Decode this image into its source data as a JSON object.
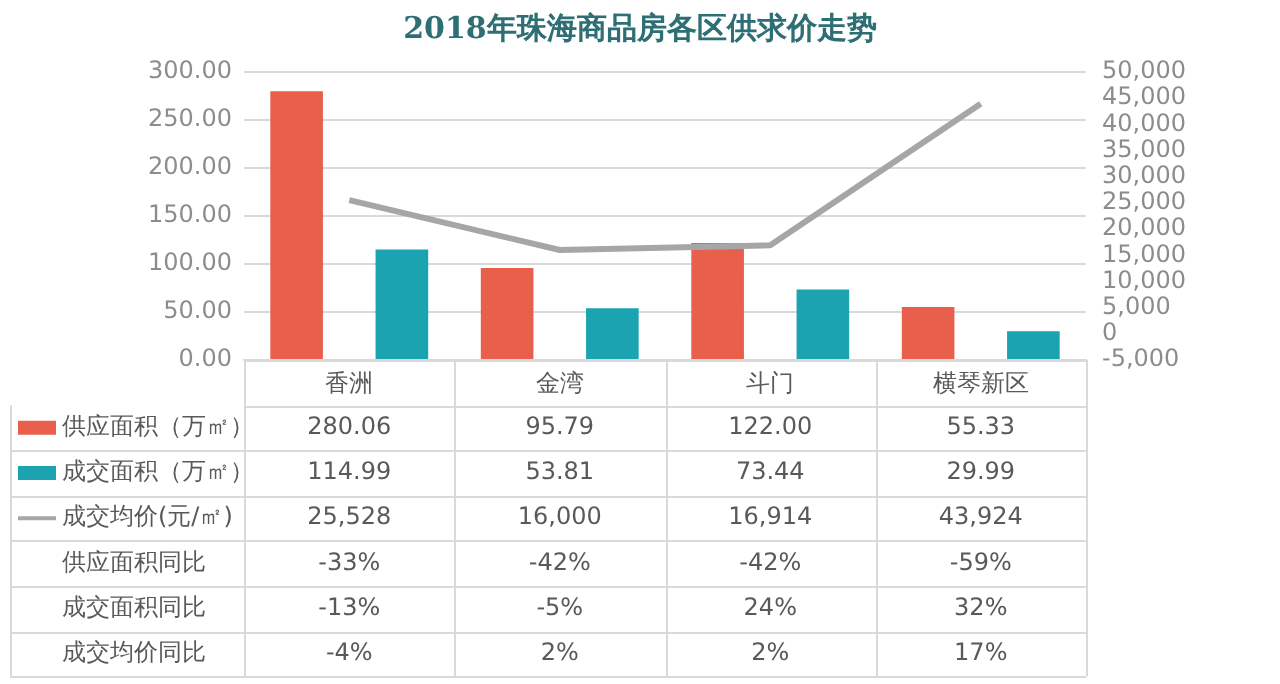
{
  "chart_data": {
    "type": "bar",
    "title": "2018年珠海商品房各区供求价走势",
    "categories": [
      "香洲",
      "金湾",
      "斗门",
      "横琴新区"
    ],
    "series": [
      {
        "name": "供应面积（万㎡）",
        "color": "#e8604c",
        "values": [
          280.06,
          95.79,
          122.0,
          55.33
        ],
        "value_labels": [
          "280.06",
          "95.79",
          "122.00",
          "55.33"
        ]
      },
      {
        "name": "成交面积（万㎡）",
        "color": "#1ba3b1",
        "values": [
          114.99,
          53.81,
          73.44,
          29.99
        ],
        "value_labels": [
          "114.99",
          "53.81",
          "73.44",
          "29.99"
        ]
      },
      {
        "name": "成交均价(元/㎡)",
        "type": "line",
        "axis": "y2",
        "color": "#a6a6a6",
        "values": [
          25528,
          16000,
          16914,
          43924
        ],
        "value_labels": [
          "25,528",
          "16,000",
          "16,914",
          "43,924"
        ]
      }
    ],
    "ylim": [
      0,
      300
    ],
    "yticks": [
      {
        "value": 0,
        "label": "0.00"
      },
      {
        "value": 50,
        "label": "50.00"
      },
      {
        "value": 100,
        "label": "100.00"
      },
      {
        "value": 150,
        "label": "150.00"
      },
      {
        "value": 200,
        "label": "200.00"
      },
      {
        "value": 250,
        "label": "250.00"
      },
      {
        "value": 300,
        "label": "300.00"
      }
    ],
    "y2lim": [
      -5000,
      50000
    ],
    "y2ticks": [
      {
        "value": -5000,
        "label": "-5,000"
      },
      0,
      {
        "value": 5000,
        "label": "5,000"
      },
      {
        "value": 10000,
        "label": "10,000"
      },
      {
        "value": 15000,
        "label": "15,000"
      },
      {
        "value": 20000,
        "label": "20,000"
      },
      {
        "value": 25000,
        "label": "25,000"
      },
      {
        "value": 30000,
        "label": "30,000"
      },
      {
        "value": 35000,
        "label": "35,000"
      },
      {
        "value": 40000,
        "label": "40,000"
      },
      {
        "value": 45000,
        "label": "45,000"
      },
      {
        "value": 50000,
        "label": "50,000"
      }
    ],
    "grid": "y",
    "legend": "bottom left",
    "marker": "none",
    "annotations": [
      "供应面积同比",
      "-33%",
      "-42%",
      "-42%",
      "-59%",
      "成交面积同比",
      "-13%",
      "-5%",
      "24%",
      "32%",
      "成交均价同比",
      "-4%",
      "2%",
      "2%",
      "17%"
    ]
  }
}
